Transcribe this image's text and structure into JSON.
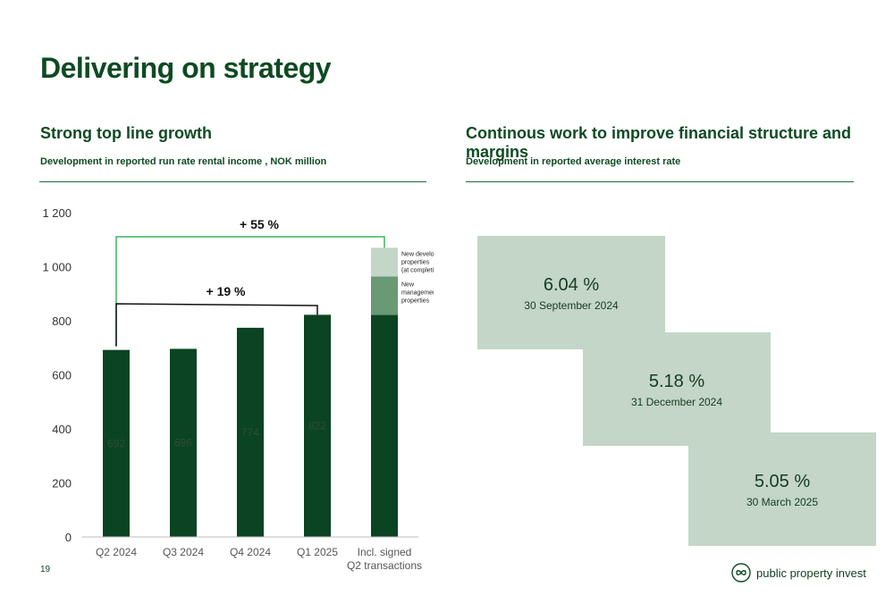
{
  "page": {
    "title": "Delivering on strategy",
    "page_number": "19"
  },
  "left": {
    "heading": "Strong top line growth",
    "subheading": "Development in reported run rate rental income , NOK million"
  },
  "right": {
    "heading": "Continous work to improve financial structure and margins",
    "subheading": "Development in reported average interest rate",
    "rates": [
      {
        "value": "6.04 %",
        "date": "30 September 2024"
      },
      {
        "value": "5.18 %",
        "date": "31 December 2024"
      },
      {
        "value": "5.05 %",
        "date": "30 March 2025"
      }
    ]
  },
  "logo": {
    "text": "public property invest",
    "icon": "infinity-icon"
  },
  "colors": {
    "dark_green": "#0b4422",
    "mid_green": "#6a9a74",
    "light_green": "#c3d6c7",
    "bracket_green": "#3cb55e",
    "title_green": "#0e4a22"
  },
  "chart_data": {
    "type": "bar",
    "categories": [
      "Q2 2024",
      "Q3 2024",
      "Q4 2024",
      "Q1 2025",
      "Incl. signed Q2 transactions"
    ],
    "values": [
      692,
      696,
      774,
      822,
      822
    ],
    "value_labels": [
      "692",
      "696",
      "774",
      "822",
      ""
    ],
    "stack_on_last": [
      {
        "name": "New management properties",
        "value": 142
      },
      {
        "name": "New development properties (at completion)",
        "value": 106
      }
    ],
    "ylim": [
      0,
      1200
    ],
    "yticks": [
      "0",
      "200",
      "400",
      "600",
      "800",
      "1 000",
      "1 200"
    ],
    "annotations": [
      {
        "label": "+ 55 %",
        "from": "Q2 2024",
        "to": "Incl. signed Q2 transactions"
      },
      {
        "label": "+ 19 %",
        "from": "Q2 2024",
        "to": "Q1 2025"
      }
    ],
    "legend_placement": "right of last bar",
    "grid": false
  }
}
